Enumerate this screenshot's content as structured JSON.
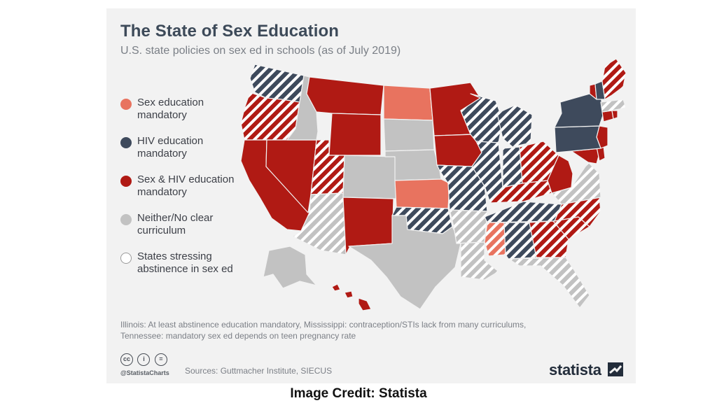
{
  "title": "The State of Sex Education",
  "subtitle": "U.S. state policies on sex ed in schools (as of July 2019)",
  "colors": {
    "sex_ed": "#e8735f",
    "hiv": "#3e4a5c",
    "both": "#b01a14",
    "neither": "#c2c2c2",
    "abstinence": "#ffffff",
    "background": "#f2f2f2"
  },
  "legend": [
    {
      "key": "sex_ed",
      "label_line1": "Sex education",
      "label_line2": "mandatory"
    },
    {
      "key": "hiv",
      "label_line1": "HIV education",
      "label_line2": "mandatory"
    },
    {
      "key": "both",
      "label_line1": "Sex & HIV education",
      "label_line2": "mandatory"
    },
    {
      "key": "neither",
      "label_line1": "Neither/No clear",
      "label_line2": "curriculum"
    },
    {
      "key": "abstinence",
      "label_line1": "States stressing",
      "label_line2": "abstinence in sex ed"
    }
  ],
  "states": [
    {
      "code": "WA",
      "policy": "hiv",
      "abstinence": true
    },
    {
      "code": "OR",
      "policy": "both",
      "abstinence": true
    },
    {
      "code": "CA",
      "policy": "both",
      "abstinence": false
    },
    {
      "code": "NV",
      "policy": "both",
      "abstinence": false
    },
    {
      "code": "ID",
      "policy": "neither",
      "abstinence": false
    },
    {
      "code": "MT",
      "policy": "both",
      "abstinence": false
    },
    {
      "code": "WY",
      "policy": "both",
      "abstinence": false
    },
    {
      "code": "UT",
      "policy": "both",
      "abstinence": true
    },
    {
      "code": "AZ",
      "policy": "neither",
      "abstinence": true
    },
    {
      "code": "CO",
      "policy": "neither",
      "abstinence": false
    },
    {
      "code": "NM",
      "policy": "both",
      "abstinence": false
    },
    {
      "code": "ND",
      "policy": "sex_ed",
      "abstinence": false
    },
    {
      "code": "SD",
      "policy": "neither",
      "abstinence": false
    },
    {
      "code": "NE",
      "policy": "neither",
      "abstinence": false
    },
    {
      "code": "KS",
      "policy": "sex_ed",
      "abstinence": false
    },
    {
      "code": "OK",
      "policy": "hiv",
      "abstinence": true
    },
    {
      "code": "TX",
      "policy": "neither",
      "abstinence": false
    },
    {
      "code": "MN",
      "policy": "both",
      "abstinence": false
    },
    {
      "code": "IA",
      "policy": "both",
      "abstinence": false
    },
    {
      "code": "MO",
      "policy": "hiv",
      "abstinence": true
    },
    {
      "code": "AR",
      "policy": "neither",
      "abstinence": true
    },
    {
      "code": "LA",
      "policy": "neither",
      "abstinence": true
    },
    {
      "code": "WI",
      "policy": "hiv",
      "abstinence": true
    },
    {
      "code": "IL",
      "policy": "hiv",
      "abstinence": true
    },
    {
      "code": "MI",
      "policy": "hiv",
      "abstinence": true
    },
    {
      "code": "IN",
      "policy": "hiv",
      "abstinence": true
    },
    {
      "code": "OH",
      "policy": "both",
      "abstinence": true
    },
    {
      "code": "KY",
      "policy": "both",
      "abstinence": true
    },
    {
      "code": "TN",
      "policy": "hiv",
      "abstinence": true
    },
    {
      "code": "MS",
      "policy": "sex_ed",
      "abstinence": true
    },
    {
      "code": "AL",
      "policy": "hiv",
      "abstinence": true
    },
    {
      "code": "GA",
      "policy": "both",
      "abstinence": true
    },
    {
      "code": "FL",
      "policy": "neither",
      "abstinence": true
    },
    {
      "code": "SC",
      "policy": "both",
      "abstinence": true
    },
    {
      "code": "NC",
      "policy": "both",
      "abstinence": true
    },
    {
      "code": "VA",
      "policy": "neither",
      "abstinence": true
    },
    {
      "code": "WV",
      "policy": "both",
      "abstinence": false
    },
    {
      "code": "MD",
      "policy": "both",
      "abstinence": false
    },
    {
      "code": "DE",
      "policy": "both",
      "abstinence": false
    },
    {
      "code": "NJ",
      "policy": "both",
      "abstinence": false
    },
    {
      "code": "PA",
      "policy": "hiv",
      "abstinence": false
    },
    {
      "code": "NY",
      "policy": "hiv",
      "abstinence": false
    },
    {
      "code": "CT",
      "policy": "both",
      "abstinence": false
    },
    {
      "code": "RI",
      "policy": "both",
      "abstinence": false
    },
    {
      "code": "MA",
      "policy": "neither",
      "abstinence": true
    },
    {
      "code": "VT",
      "policy": "both",
      "abstinence": false
    },
    {
      "code": "NH",
      "policy": "hiv",
      "abstinence": false
    },
    {
      "code": "ME",
      "policy": "both",
      "abstinence": true
    },
    {
      "code": "AK",
      "policy": "neither",
      "abstinence": false
    },
    {
      "code": "HI",
      "policy": "both",
      "abstinence": false
    }
  ],
  "note_line1": "Illinois: At least abstinence education mandatory, Mississippi: contraception/STIs lack from many curriculums,",
  "note_line2": "Tennessee: mandatory sex ed depends on teen pregnancy rate",
  "cc_icons": [
    "cc",
    "i",
    "="
  ],
  "handle": "@StatistaCharts",
  "sources": "Sources: Guttmacher Institute, SIECUS",
  "brand": "statista",
  "credit": "Image Credit: Statista"
}
